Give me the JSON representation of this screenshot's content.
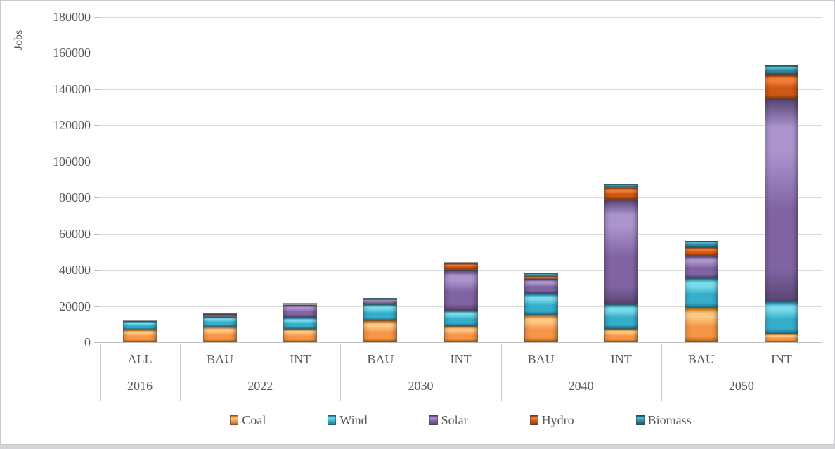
{
  "chart_data": {
    "type": "bar",
    "stacked": true,
    "ylabel": "Jobs",
    "ylim": [
      0,
      180000
    ],
    "y_ticks": [
      0,
      20000,
      40000,
      60000,
      80000,
      100000,
      120000,
      140000,
      160000,
      180000
    ],
    "grid": true,
    "legend_position": "bottom",
    "axis_text_color": "#595959",
    "gridline_color": "#d9d9d9",
    "series": [
      {
        "name": "Coal",
        "color": "#F79646",
        "light": "#FFC983",
        "dark": "#BE6B17"
      },
      {
        "name": "Wind",
        "color": "#35AECB",
        "light": "#79DCEC",
        "dark": "#1F7F9C"
      },
      {
        "name": "Solar",
        "color": "#8064A2",
        "light": "#AC94CE",
        "dark": "#5A4674"
      },
      {
        "name": "Hydro",
        "color": "#CE5715",
        "light": "#F08038",
        "dark": "#933D08"
      },
      {
        "name": "Biomass",
        "color": "#2E86A0",
        "light": "#55BDD2",
        "dark": "#1B5A6E"
      }
    ],
    "groups": [
      {
        "year": "2016",
        "bars": [
          {
            "label": "ALL",
            "values": [
              7000,
              4500,
              0,
              500,
              0
            ]
          }
        ]
      },
      {
        "year": "2022",
        "bars": [
          {
            "label": "BAU",
            "values": [
              8500,
              5500,
              1500,
              300,
              200
            ]
          },
          {
            "label": "INT",
            "values": [
              7500,
              6000,
              7000,
              1000,
              300
            ]
          }
        ]
      },
      {
        "year": "2030",
        "bars": [
          {
            "label": "BAU",
            "values": [
              12000,
              9000,
              2000,
              500,
              1000
            ]
          },
          {
            "label": "INT",
            "values": [
              9000,
              8500,
              22500,
              3500,
              1000
            ]
          }
        ]
      },
      {
        "year": "2040",
        "bars": [
          {
            "label": "BAU",
            "values": [
              15000,
              12000,
              8000,
              1500,
              1500
            ]
          },
          {
            "label": "INT",
            "values": [
              7500,
              13500,
              58000,
              6500,
              2000
            ]
          }
        ]
      },
      {
        "year": "2050",
        "bars": [
          {
            "label": "BAU",
            "values": [
              19000,
              16500,
              12500,
              4500,
              3500
            ]
          },
          {
            "label": "INT",
            "values": [
              4500,
              18000,
              112000,
              13500,
              5000
            ]
          }
        ]
      }
    ]
  }
}
